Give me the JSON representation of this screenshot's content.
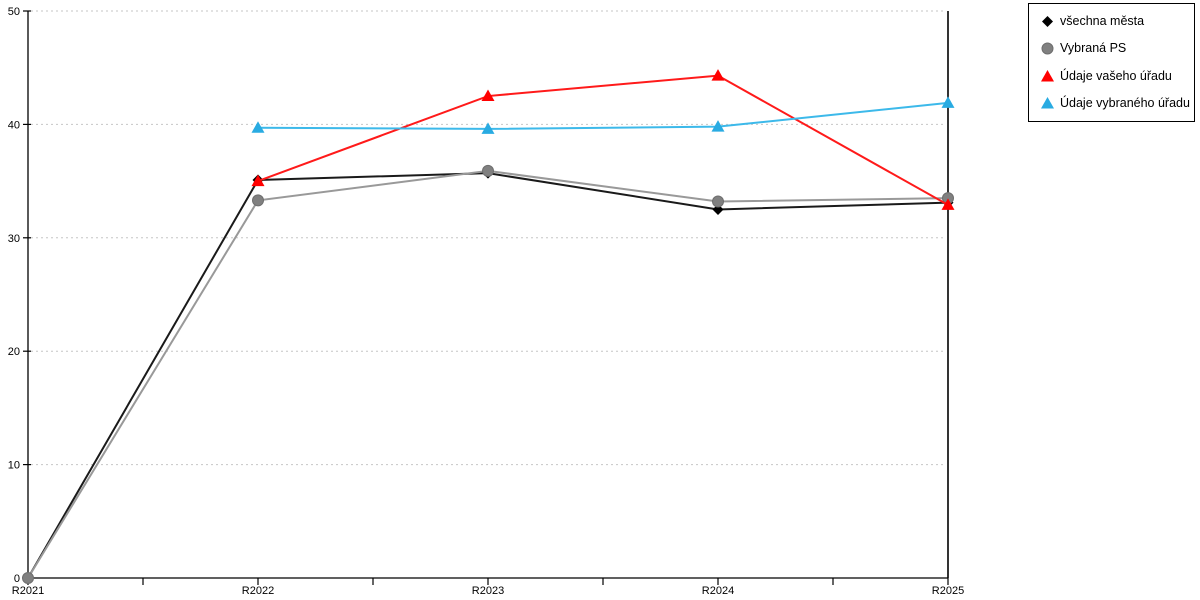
{
  "chart_data": {
    "type": "line",
    "title": "",
    "xlabel": "",
    "ylabel": "",
    "categories": [
      "R2021",
      "R2022",
      "R2023",
      "R2024",
      "R2025"
    ],
    "series": [
      {
        "name": "všechna města",
        "marker": "diamond",
        "color": "#000000",
        "line_color": "#1a1a1a",
        "values": [
          0,
          35.1,
          35.7,
          32.5,
          33.1
        ]
      },
      {
        "name": "Vybraná PS",
        "marker": "circle",
        "color": "#808080",
        "line_color": "#999999",
        "values": [
          0,
          33.3,
          35.9,
          33.2,
          33.5
        ]
      },
      {
        "name": "Údaje vašeho úřadu",
        "marker": "triangle",
        "color": "#ff0000",
        "line_color": "#ff1a1a",
        "values": [
          null,
          35.0,
          42.5,
          44.3,
          32.9
        ]
      },
      {
        "name": "Údaje vybraného úřadu",
        "marker": "triangle",
        "color": "#29abe2",
        "line_color": "#3cb9ea",
        "values": [
          null,
          39.7,
          39.6,
          39.8,
          41.9
        ]
      }
    ],
    "ylim": [
      0,
      50
    ],
    "yticks": [
      0,
      10,
      20,
      30,
      40,
      50
    ],
    "grid": "horizontal-dotted",
    "grid_color": "#c6c6c6",
    "axis_color": "#000000",
    "legend_position": "top-right"
  }
}
